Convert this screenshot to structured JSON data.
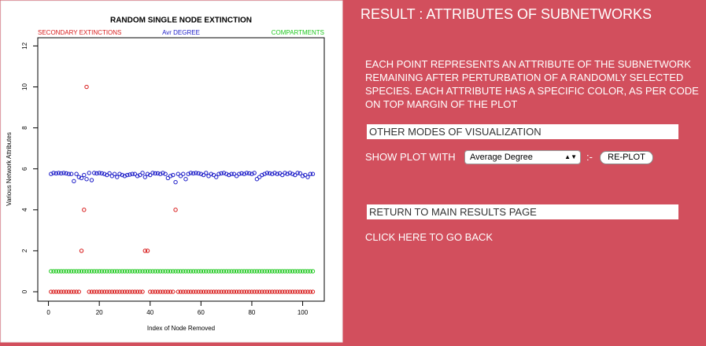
{
  "chart_data": {
    "type": "scatter",
    "title": "RANDOM SINGLE NODE EXTINCTION",
    "x_label": "Index of Node Removed",
    "y_label": "Various Network Attributes",
    "x": [
      1,
      2,
      3,
      4,
      5,
      6,
      7,
      8,
      9,
      10,
      11,
      12,
      13,
      14,
      15,
      16,
      17,
      18,
      19,
      20,
      21,
      22,
      23,
      24,
      25,
      26,
      27,
      28,
      29,
      30,
      31,
      32,
      33,
      34,
      35,
      36,
      37,
      38,
      39,
      40,
      41,
      42,
      43,
      44,
      45,
      46,
      47,
      48,
      49,
      50,
      51,
      52,
      53,
      54,
      55,
      56,
      57,
      58,
      59,
      60,
      61,
      62,
      63,
      64,
      65,
      66,
      67,
      68,
      69,
      70,
      71,
      72,
      73,
      74,
      75,
      76,
      77,
      78,
      79,
      80,
      81,
      82,
      83,
      84,
      85,
      86,
      87,
      88,
      89,
      90,
      91,
      92,
      93,
      94,
      95,
      96,
      97,
      98,
      99,
      100,
      101,
      102,
      103,
      104
    ],
    "series": [
      {
        "name": "SECONDARY EXTINCTIONS",
        "color": "#d81b1b",
        "values": [
          0,
          0,
          0,
          0,
          0,
          0,
          0,
          0,
          0,
          0,
          0,
          0,
          2,
          4,
          10,
          0,
          0,
          0,
          0,
          0,
          0,
          0,
          0,
          0,
          0,
          0,
          0,
          0,
          0,
          0,
          0,
          0,
          0,
          0,
          0,
          0,
          0,
          2,
          2,
          0,
          0,
          0,
          0,
          0,
          0,
          0,
          0,
          0,
          0,
          4,
          0,
          0,
          0,
          0,
          0,
          0,
          0,
          0,
          0,
          0,
          0,
          0,
          0,
          0,
          0,
          0,
          0,
          0,
          0,
          0,
          0,
          0,
          0,
          0,
          0,
          0,
          0,
          0,
          0,
          0,
          0,
          0,
          0,
          0,
          0,
          0,
          0,
          0,
          0,
          0,
          0,
          0,
          0,
          0,
          0,
          0,
          0,
          0,
          0,
          0,
          0,
          0,
          0,
          0
        ]
      },
      {
        "name": "Avr DEGREE",
        "color": "#1c1cc8",
        "values": [
          5.75,
          5.8,
          5.78,
          5.8,
          5.78,
          5.8,
          5.78,
          5.75,
          5.75,
          5.4,
          5.75,
          5.6,
          5.55,
          5.7,
          5.5,
          5.8,
          5.45,
          5.8,
          5.78,
          5.8,
          5.78,
          5.75,
          5.7,
          5.78,
          5.65,
          5.75,
          5.6,
          5.75,
          5.7,
          5.65,
          5.7,
          5.72,
          5.75,
          5.75,
          5.65,
          5.7,
          5.8,
          5.6,
          5.75,
          5.7,
          5.8,
          5.78,
          5.78,
          5.75,
          5.8,
          5.75,
          5.55,
          5.65,
          5.7,
          5.35,
          5.75,
          5.65,
          5.75,
          5.5,
          5.75,
          5.8,
          5.78,
          5.8,
          5.78,
          5.75,
          5.7,
          5.8,
          5.65,
          5.75,
          5.7,
          5.6,
          5.75,
          5.78,
          5.8,
          5.75,
          5.7,
          5.75,
          5.75,
          5.65,
          5.75,
          5.78,
          5.75,
          5.8,
          5.78,
          5.75,
          5.8,
          5.5,
          5.6,
          5.7,
          5.75,
          5.8,
          5.78,
          5.75,
          5.8,
          5.75,
          5.78,
          5.7,
          5.8,
          5.75,
          5.8,
          5.75,
          5.7,
          5.8,
          5.78,
          5.65,
          5.7,
          5.6,
          5.75,
          5.75
        ]
      },
      {
        "name": "COMPARTMENTS",
        "color": "#1ec81e",
        "values": [
          1,
          1,
          1,
          1,
          1,
          1,
          1,
          1,
          1,
          1,
          1,
          1,
          1,
          1,
          1,
          1,
          1,
          1,
          1,
          1,
          1,
          1,
          1,
          1,
          1,
          1,
          1,
          1,
          1,
          1,
          1,
          1,
          1,
          1,
          1,
          1,
          1,
          1,
          1,
          1,
          1,
          1,
          1,
          1,
          1,
          1,
          1,
          1,
          1,
          1,
          1,
          1,
          1,
          1,
          1,
          1,
          1,
          1,
          1,
          1,
          1,
          1,
          1,
          1,
          1,
          1,
          1,
          1,
          1,
          1,
          1,
          1,
          1,
          1,
          1,
          1,
          1,
          1,
          1,
          1,
          1,
          1,
          1,
          1,
          1,
          1,
          1,
          1,
          1,
          1,
          1,
          1,
          1,
          1,
          1,
          1,
          1,
          1,
          1,
          1,
          1,
          1,
          1,
          1
        ]
      }
    ],
    "xlim": [
      -4.2,
      108.5
    ],
    "xticks": [
      0,
      20,
      40,
      60,
      80,
      100
    ],
    "ylim": [
      -0.46,
      12.4
    ],
    "yticks": [
      0,
      2,
      4,
      6,
      8,
      10,
      12
    ]
  },
  "panel": {
    "heading": "RESULT : ATTRIBUTES OF SUBNETWORKS",
    "description": "EACH POINT REPRESENTS AN ATTRIBUTE OF THE SUBNETWORK REMAINING AFTER PERTURBATION OF A RANDOMLY SELECTED SPECIES. EACH ATTRIBUTE HAS A SPECIFIC COLOR, AS PER CODE ON TOP MARGIN OF THE PLOT",
    "modes_box": "OTHER MODES OF VISUALIZATION",
    "show_label": "SHOW PLOT WITH",
    "select_value": "Average Degree",
    "separator": ":-",
    "button": "RE-PLOT",
    "return_box": "RETURN TO MAIN RESULTS PAGE",
    "back_link": "CLICK HERE TO GO BACK"
  }
}
